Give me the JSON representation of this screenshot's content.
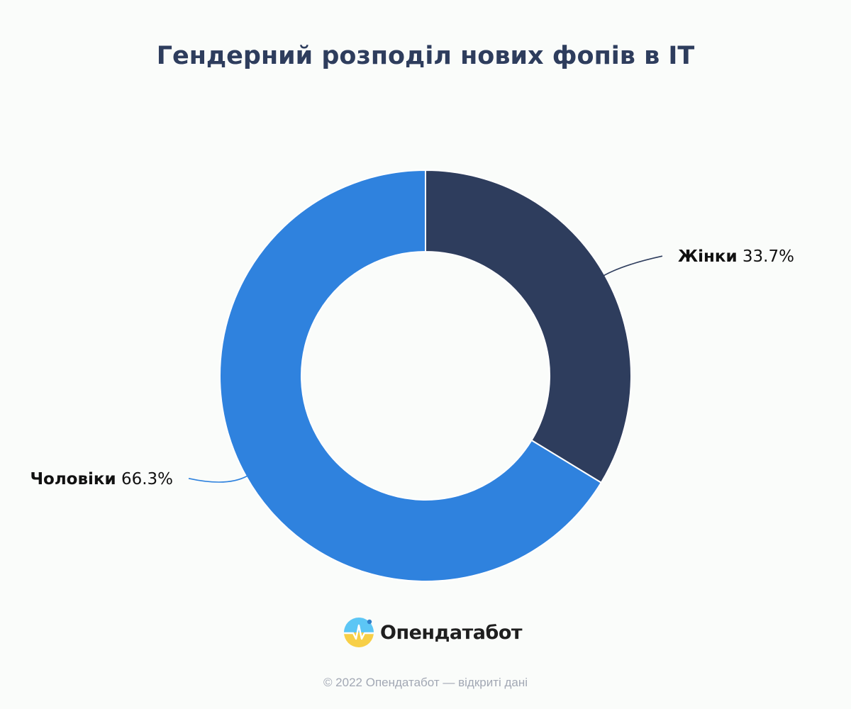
{
  "chart_data": {
    "type": "pie",
    "title": "Гендерний розподіл нових фопів в IT",
    "categories": [
      "Жінки",
      "Чоловіки"
    ],
    "values": [
      33.7,
      66.3
    ],
    "value_labels": [
      "33.7%",
      "66.3%"
    ],
    "colors": [
      "#2e3d5d",
      "#2f82de"
    ],
    "donut": true,
    "legend": "none"
  },
  "brand": {
    "name": "Опендатабот",
    "icon": "opendatabot-logo-icon"
  },
  "credit": "© 2022 Опендатабот — відкриті дані"
}
